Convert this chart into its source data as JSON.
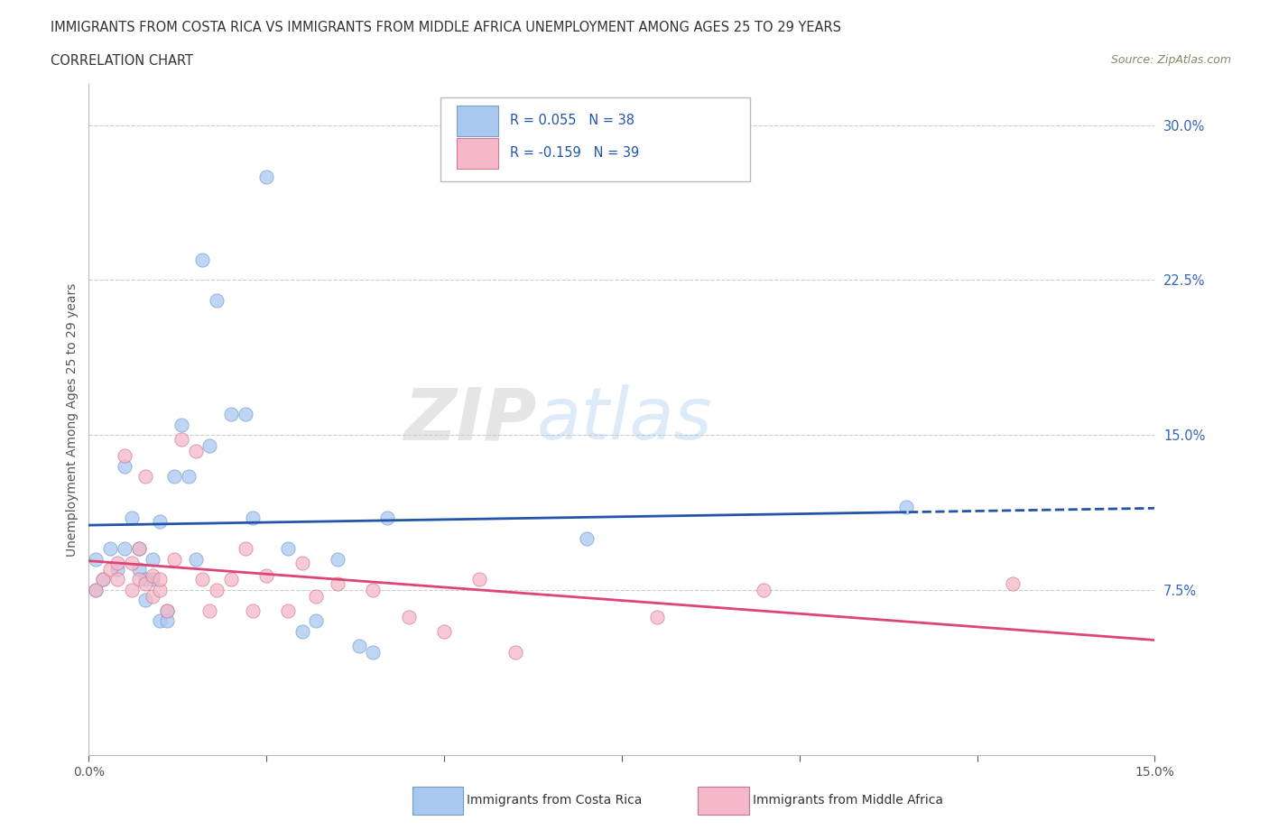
{
  "title_line1": "IMMIGRANTS FROM COSTA RICA VS IMMIGRANTS FROM MIDDLE AFRICA UNEMPLOYMENT AMONG AGES 25 TO 29 YEARS",
  "title_line2": "CORRELATION CHART",
  "source_text": "Source: ZipAtlas.com",
  "ylabel": "Unemployment Among Ages 25 to 29 years",
  "xlim": [
    0.0,
    0.15
  ],
  "ylim": [
    -0.005,
    0.32
  ],
  "ytick_positions": [
    0.075,
    0.15,
    0.225,
    0.3
  ],
  "ytick_labels_right": [
    "7.5%",
    "15.0%",
    "22.5%",
    "30.0%"
  ],
  "watermark_zip": "ZIP",
  "watermark_atlas": "atlas",
  "series1_label": "Immigrants from Costa Rica",
  "series2_label": "Immigrants from Middle Africa",
  "series1_color": "#a8c8f0",
  "series2_color": "#f5b8c8",
  "series1_edge": "#7099cc",
  "series2_edge": "#d07090",
  "trendline1_color": "#2255aa",
  "trendline2_color": "#dd4477",
  "legend_R1": "R = 0.055",
  "legend_N1": "N = 38",
  "legend_R2": "R = -0.159",
  "legend_N2": "N = 39",
  "grid_color": "#cccccc",
  "background_color": "#ffffff",
  "costa_rica_x": [
    0.001,
    0.001,
    0.002,
    0.003,
    0.004,
    0.005,
    0.005,
    0.006,
    0.007,
    0.007,
    0.008,
    0.008,
    0.009,
    0.009,
    0.01,
    0.01,
    0.011,
    0.011,
    0.012,
    0.013,
    0.014,
    0.015,
    0.016,
    0.017,
    0.018,
    0.02,
    0.022,
    0.023,
    0.025,
    0.028,
    0.03,
    0.032,
    0.035,
    0.038,
    0.04,
    0.042,
    0.07,
    0.115
  ],
  "costa_rica_y": [
    0.09,
    0.075,
    0.08,
    0.095,
    0.085,
    0.135,
    0.095,
    0.11,
    0.085,
    0.095,
    0.07,
    0.08,
    0.08,
    0.09,
    0.06,
    0.108,
    0.065,
    0.06,
    0.13,
    0.155,
    0.13,
    0.09,
    0.235,
    0.145,
    0.215,
    0.16,
    0.16,
    0.11,
    0.275,
    0.095,
    0.055,
    0.06,
    0.09,
    0.048,
    0.045,
    0.11,
    0.1,
    0.115
  ],
  "middle_africa_x": [
    0.001,
    0.002,
    0.003,
    0.004,
    0.004,
    0.005,
    0.006,
    0.006,
    0.007,
    0.007,
    0.008,
    0.008,
    0.009,
    0.009,
    0.01,
    0.01,
    0.011,
    0.012,
    0.013,
    0.015,
    0.016,
    0.017,
    0.018,
    0.02,
    0.022,
    0.023,
    0.025,
    0.028,
    0.03,
    0.032,
    0.035,
    0.04,
    0.045,
    0.05,
    0.055,
    0.06,
    0.08,
    0.095,
    0.13
  ],
  "middle_africa_y": [
    0.075,
    0.08,
    0.085,
    0.08,
    0.088,
    0.14,
    0.075,
    0.088,
    0.08,
    0.095,
    0.078,
    0.13,
    0.072,
    0.082,
    0.075,
    0.08,
    0.065,
    0.09,
    0.148,
    0.142,
    0.08,
    0.065,
    0.075,
    0.08,
    0.095,
    0.065,
    0.082,
    0.065,
    0.088,
    0.072,
    0.078,
    0.075,
    0.062,
    0.055,
    0.08,
    0.045,
    0.062,
    0.075,
    0.078
  ]
}
